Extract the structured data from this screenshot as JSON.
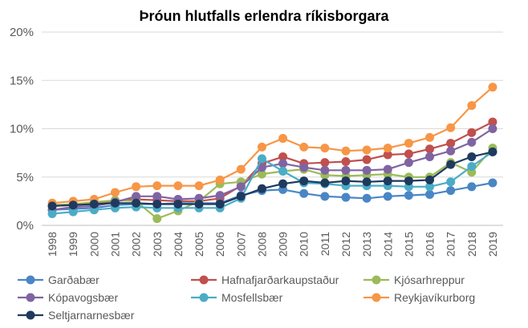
{
  "chart_data": {
    "type": "line",
    "title": "Þróun hlutfalls erlendra ríkisborgara",
    "xlabel": "",
    "ylabel": "",
    "ylim": [
      0,
      20
    ],
    "yticks": [
      "0%",
      "5%",
      "10%",
      "15%",
      "20%"
    ],
    "grid": true,
    "legend_position": "bottom",
    "x": [
      "1998",
      "1999",
      "2000",
      "2001",
      "2002",
      "2003",
      "2004",
      "2005",
      "2006",
      "2007",
      "2008",
      "2009",
      "2010",
      "2011",
      "2012",
      "2013",
      "2014",
      "2015",
      "2016",
      "2017",
      "2018",
      "2019"
    ],
    "series": [
      {
        "name": "Garðabær",
        "color": "#4a86c5",
        "values": [
          1.6,
          1.7,
          1.8,
          2.1,
          2.2,
          2.2,
          2.3,
          2.3,
          2.3,
          3.1,
          3.6,
          3.7,
          3.3,
          3.0,
          2.9,
          2.8,
          3.0,
          3.1,
          3.2,
          3.6,
          4.0,
          4.4
        ]
      },
      {
        "name": "Hafnafjarðarkaupstaður",
        "color": "#c0504d",
        "values": [
          2.0,
          2.1,
          2.3,
          2.5,
          2.7,
          2.6,
          2.5,
          2.5,
          2.8,
          4.1,
          6.4,
          7.1,
          6.4,
          6.5,
          6.6,
          6.8,
          7.3,
          7.4,
          7.9,
          8.5,
          9.6,
          10.7
        ]
      },
      {
        "name": "Kjósarhreppur",
        "color": "#9bbb59",
        "values": [
          2.1,
          2.2,
          2.4,
          2.6,
          2.5,
          0.7,
          1.5,
          2.5,
          4.3,
          4.5,
          5.3,
          5.6,
          5.8,
          5.2,
          5.1,
          5.2,
          5.3,
          5.0,
          5.0,
          6.5,
          5.5,
          8.0
        ]
      },
      {
        "name": "Kópavogsbær",
        "color": "#8064a2",
        "values": [
          1.6,
          1.9,
          2.0,
          2.4,
          3.0,
          3.0,
          2.7,
          2.8,
          3.1,
          4.0,
          6.0,
          6.4,
          6.0,
          5.7,
          5.7,
          5.7,
          5.8,
          6.5,
          7.1,
          7.7,
          8.6,
          10.0
        ]
      },
      {
        "name": "Mosfellsbær",
        "color": "#4bacc6",
        "values": [
          1.2,
          1.4,
          1.6,
          1.8,
          1.9,
          1.8,
          1.8,
          1.8,
          1.8,
          2.8,
          6.9,
          5.6,
          4.4,
          4.3,
          4.1,
          4.1,
          4.1,
          4.0,
          4.0,
          4.5,
          6.1,
          7.6
        ]
      },
      {
        "name": "Reykjavíkurborg",
        "color": "#f79646",
        "values": [
          2.3,
          2.5,
          2.7,
          3.4,
          4.0,
          4.1,
          4.1,
          4.1,
          4.7,
          5.8,
          8.1,
          9.0,
          8.1,
          8.0,
          7.7,
          7.8,
          8.0,
          8.5,
          9.1,
          10.1,
          12.4,
          14.3
        ]
      },
      {
        "name": "Seltjarnarnesbær",
        "color": "#1f3a5f",
        "values": [
          2.0,
          2.1,
          2.2,
          2.3,
          2.3,
          2.2,
          2.2,
          2.2,
          2.2,
          3.0,
          3.8,
          4.3,
          4.6,
          4.4,
          4.6,
          4.5,
          4.6,
          4.6,
          4.7,
          6.3,
          7.1,
          7.6
        ]
      }
    ]
  }
}
